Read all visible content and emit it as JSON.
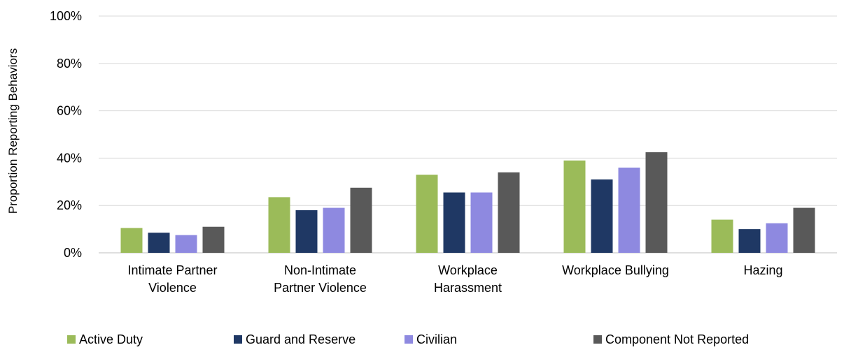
{
  "chart_data": {
    "type": "bar",
    "title": "",
    "xlabel": "",
    "ylabel": "Proportion Reporting Behaviors",
    "ylim": [
      0,
      100
    ],
    "y_ticks": [
      "0%",
      "20%",
      "40%",
      "60%",
      "80%",
      "100%"
    ],
    "y_tick_values": [
      0,
      20,
      40,
      60,
      80,
      100
    ],
    "grid": true,
    "legend_position": "bottom",
    "categories": [
      [
        "Intimate Partner",
        "Violence"
      ],
      [
        "Non-Intimate",
        "Partner Violence"
      ],
      [
        "Workplace",
        "Harassment"
      ],
      [
        "Workplace Bullying"
      ],
      [
        "Hazing"
      ]
    ],
    "series": [
      {
        "name": "Active Duty",
        "color": "#9bbb59",
        "values": [
          10.5,
          23.5,
          33,
          39,
          14
        ]
      },
      {
        "name": "Guard and Reserve",
        "color": "#1f3864",
        "values": [
          8.5,
          18,
          25.5,
          31,
          10
        ]
      },
      {
        "name": "Civilian",
        "color": "#8e89e0",
        "values": [
          7.5,
          19,
          25.5,
          36,
          12.5
        ]
      },
      {
        "name": "Component Not Reported",
        "color": "#595959",
        "values": [
          11,
          27.5,
          34,
          42.5,
          19
        ]
      }
    ]
  }
}
